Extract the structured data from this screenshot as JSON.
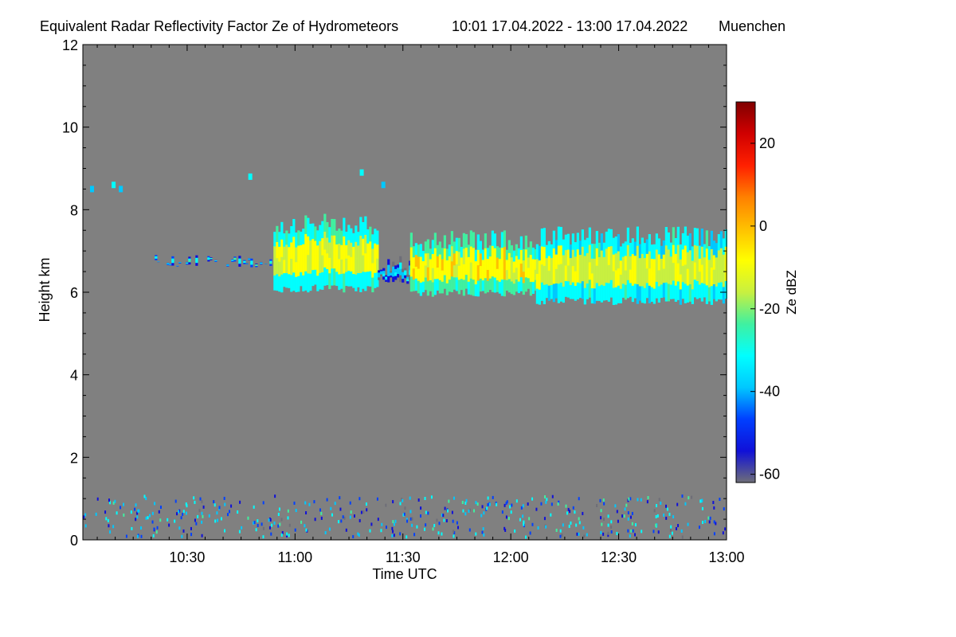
{
  "chart_data": {
    "type": "heatmap",
    "title": "Equivalent Radar Reflectivity Factor Ze of Hydrometeors",
    "time_range_label": "10:01 17.04.2022 - 13:00 17.04.2022",
    "location": "Muenchen",
    "xlabel": "Time UTC",
    "ylabel": "Height km",
    "xlim_minutes": [
      601,
      780
    ],
    "ylim": [
      0,
      12
    ],
    "x_ticks": [
      {
        "label": "10:30",
        "minutes": 630
      },
      {
        "label": "11:00",
        "minutes": 660
      },
      {
        "label": "11:30",
        "minutes": 690
      },
      {
        "label": "12:00",
        "minutes": 720
      },
      {
        "label": "12:30",
        "minutes": 750
      },
      {
        "label": "13:00",
        "minutes": 780
      }
    ],
    "y_ticks": [
      0,
      2,
      4,
      6,
      8,
      10,
      12
    ],
    "colorbar": {
      "label": "Ze dBZ",
      "range": [
        -62,
        30
      ],
      "ticks": [
        "20",
        "0",
        "-20",
        "-40",
        "-60"
      ],
      "tick_values": [
        20,
        0,
        -20,
        -40,
        -60
      ],
      "colors": [
        "#6e6e78",
        "#1010d8",
        "#0040ff",
        "#00c8ff",
        "#00ffff",
        "#40f0a0",
        "#c8f040",
        "#ffff00",
        "#ffc000",
        "#ff8000",
        "#ff2000",
        "#d00000",
        "#800000"
      ]
    },
    "background_color": "#808080",
    "cloud_layer": {
      "description_values_dBZ": [
        -45,
        -5
      ],
      "segments": [
        {
          "t_start": 621,
          "t_end": 654,
          "base_km": 6.6,
          "top_km": 6.9,
          "ze_mean": -30
        },
        {
          "t_start": 654,
          "t_end": 683,
          "base_km": 6.0,
          "top_km": 7.9,
          "ze_mean": -12
        },
        {
          "t_start": 683,
          "t_end": 692,
          "base_km": 6.2,
          "top_km": 6.9,
          "ze_mean": -38
        },
        {
          "t_start": 692,
          "t_end": 727,
          "base_km": 5.9,
          "top_km": 7.5,
          "ze_mean": -8
        },
        {
          "t_start": 727,
          "t_end": 780,
          "base_km": 5.7,
          "top_km": 7.6,
          "ze_mean": -14
        }
      ],
      "isolated_echoes": [
        {
          "t": 603,
          "h": 8.5,
          "ze": -40
        },
        {
          "t": 609,
          "h": 8.6,
          "ze": -35
        },
        {
          "t": 611,
          "h": 8.5,
          "ze": -38
        },
        {
          "t": 647,
          "h": 8.8,
          "ze": -30
        },
        {
          "t": 678,
          "h": 8.9,
          "ze": -30
        },
        {
          "t": 684,
          "h": 8.6,
          "ze": -40
        }
      ]
    },
    "near_surface_clutter": {
      "height_range_km": [
        0,
        1.2
      ],
      "ze_range": [
        -60,
        -25
      ]
    }
  }
}
